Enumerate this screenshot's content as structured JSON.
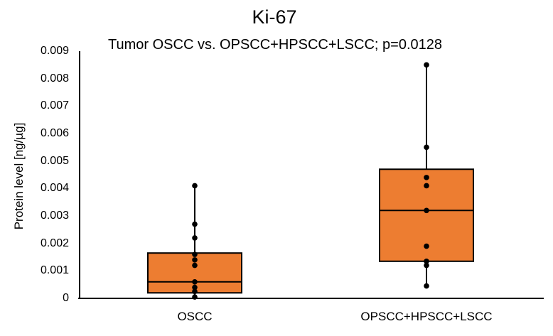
{
  "chart_data": {
    "type": "box",
    "title": "Ki-67",
    "subtitle": "Tumor OSCC vs. OPSCC+HPSCC+LSCC; p=0.0128",
    "ylabel": "Protein level [ng/µg]",
    "ylim": [
      0,
      0.009
    ],
    "ytick_values": [
      0,
      0.001,
      0.002,
      0.003,
      0.004,
      0.005,
      0.006,
      0.007,
      0.008,
      0.009
    ],
    "ytick_labels": [
      "0",
      "0.001",
      "0.002",
      "0.003",
      "0.004",
      "0.005",
      "0.006",
      "0.007",
      "0.008",
      "0.009"
    ],
    "grid": false,
    "legend": "none",
    "categories": [
      "OSCC",
      "OPSCC+HPSCC+LSCC"
    ],
    "series": [
      {
        "name": "OSCC",
        "whisker_low": 5e-05,
        "q1": 0.0002,
        "median": 0.0006,
        "q3": 0.00165,
        "whisker_high": 0.0041,
        "points": [
          0.0041,
          0.0027,
          0.0022,
          0.0016,
          0.0014,
          0.0012,
          0.0006,
          0.0004,
          0.00025,
          5e-05
        ]
      },
      {
        "name": "OPSCC+HPSCC+LSCC",
        "whisker_low": 0.00045,
        "q1": 0.00135,
        "median": 0.0032,
        "q3": 0.0047,
        "whisker_high": 0.0085,
        "points": [
          0.0085,
          0.0055,
          0.0044,
          0.0041,
          0.0032,
          0.0019,
          0.00135,
          0.0012,
          0.00045
        ]
      }
    ]
  },
  "colors": {
    "box_fill": "#ED7D31",
    "box_stroke": "#000000",
    "whisker": "#000000",
    "point": "#000000",
    "axis": "#000000",
    "text": "#000000"
  }
}
